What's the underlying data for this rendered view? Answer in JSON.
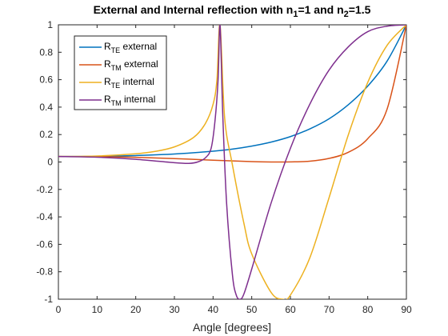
{
  "chart_data": {
    "type": "line",
    "title": "External and Internal reflection with n",
    "title_parts": {
      "prefix": "External and Internal reflection with n",
      "sub1": "1",
      "mid": "=1 and n",
      "sub2": "2",
      "suffix": "=1.5"
    },
    "xlabel": "Angle [degrees]",
    "ylabel": "",
    "xlim": [
      0,
      90
    ],
    "ylim": [
      -1,
      1
    ],
    "xticks": [
      0,
      10,
      20,
      30,
      40,
      50,
      60,
      70,
      80,
      90
    ],
    "xtick_labels": [
      "0",
      "10",
      "20",
      "30",
      "40",
      "50",
      "60",
      "70",
      "80",
      "90"
    ],
    "yticks": [
      -1,
      -0.8,
      -0.6,
      -0.4,
      -0.2,
      0,
      0.2,
      0.4,
      0.6,
      0.8,
      1
    ],
    "ytick_labels": [
      "-1",
      "-0.8",
      "-0.6",
      "-0.4",
      "-0.2",
      "0",
      "0.2",
      "0.4",
      "0.6",
      "0.8",
      "1"
    ],
    "grid": false,
    "legend_position": "top-left",
    "series": [
      {
        "name": "R_TE external",
        "label_main": "R",
        "label_sub": "TE",
        "label_rest": " external",
        "color": "#0072bd",
        "x": [
          0,
          10,
          20,
          30,
          40,
          45,
          50,
          55,
          60,
          65,
          70,
          75,
          80,
          85,
          90
        ],
        "y": [
          0.04,
          0.041,
          0.047,
          0.058,
          0.079,
          0.094,
          0.116,
          0.145,
          0.185,
          0.241,
          0.315,
          0.418,
          0.553,
          0.735,
          1.0
        ]
      },
      {
        "name": "R_TM external",
        "label_main": "R",
        "label_sub": "TM",
        "label_rest": " external",
        "color": "#d95319",
        "x": [
          0,
          10,
          20,
          30,
          40,
          45,
          50,
          55,
          56.3,
          60,
          65,
          70,
          75,
          80,
          85,
          90
        ],
        "y": [
          0.04,
          0.039,
          0.034,
          0.025,
          0.013,
          0.008,
          0.003,
          0.0002,
          0.0,
          0.001,
          0.006,
          0.026,
          0.071,
          0.17,
          0.385,
          1.0
        ]
      },
      {
        "name": "R_TE internal",
        "label_main": "R",
        "label_sub": "TE",
        "label_rest": " internal",
        "color": "#edb120",
        "x": [
          0,
          10,
          20,
          25,
          30,
          35,
          38,
          40,
          41,
          41.8,
          43,
          45,
          48,
          50,
          55,
          58,
          60,
          65,
          70,
          75,
          80,
          85,
          90
        ],
        "y": [
          0.04,
          0.044,
          0.06,
          0.077,
          0.11,
          0.18,
          0.28,
          0.42,
          0.6,
          1.0,
          0.32,
          -0.02,
          -0.45,
          -0.67,
          -0.95,
          -1.0,
          -0.97,
          -0.7,
          -0.26,
          0.2,
          0.58,
          0.85,
          1.0
        ]
      },
      {
        "name": "R_TM internal",
        "label_main": "R",
        "label_sub": "TM",
        "label_rest": " internal",
        "color": "#7e2f8e",
        "x": [
          0,
          10,
          20,
          30,
          33.7,
          36,
          38,
          39.5,
          40.5,
          41.3,
          41.8,
          42.5,
          43.5,
          45,
          46,
          47,
          48,
          50,
          55,
          60,
          65,
          70,
          75,
          80,
          85,
          90
        ],
        "y": [
          0.04,
          0.035,
          0.02,
          -0.005,
          -0.01,
          0.0,
          0.03,
          0.1,
          0.3,
          0.6,
          1.0,
          0.35,
          -0.3,
          -0.82,
          -0.97,
          -1.0,
          -0.96,
          -0.78,
          -0.3,
          0.1,
          0.42,
          0.67,
          0.84,
          0.95,
          0.99,
          1.0
        ]
      }
    ]
  }
}
